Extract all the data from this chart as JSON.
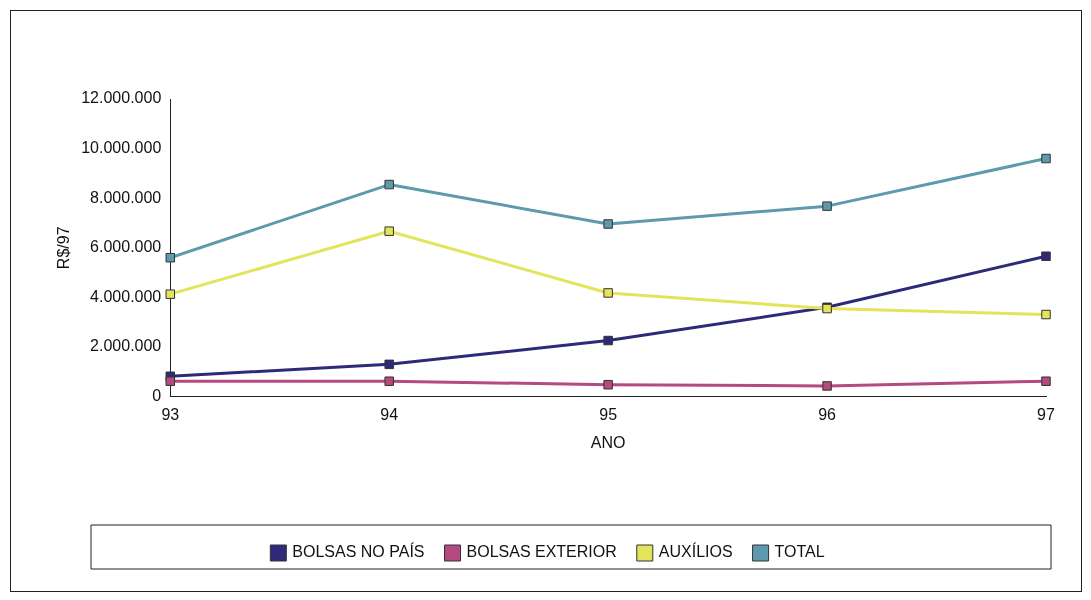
{
  "chart_data": {
    "type": "line",
    "xlabel": "ANO",
    "ylabel": "R$/97",
    "categories": [
      "93",
      "94",
      "95",
      "96",
      "97"
    ],
    "series": [
      {
        "name": "BOLSAS NO PAÍS",
        "color": "#2e2a7a",
        "values": [
          820000,
          1300000,
          2260000,
          3600000,
          5660000
        ]
      },
      {
        "name": "BOLSAS EXTERIOR",
        "color": "#b44a80",
        "values": [
          620000,
          620000,
          480000,
          430000,
          620000
        ]
      },
      {
        "name": "AUXÍLIOS",
        "color": "#e4e45a",
        "values": [
          4130000,
          6670000,
          4180000,
          3550000,
          3310000
        ]
      },
      {
        "name": "TOTAL",
        "color": "#5e9aae",
        "values": [
          5600000,
          8550000,
          6960000,
          7680000,
          9600000
        ]
      }
    ],
    "ylim": [
      0,
      12000000
    ],
    "yticks": [
      0,
      {
        "value": 2000000,
        "label": "2.000.000"
      },
      {
        "value": 4000000,
        "label": "4.000.000"
      },
      {
        "value": 6000000,
        "label": "6.000.000"
      },
      {
        "value": 8000000,
        "label": "8.000.000"
      },
      {
        "value": 10000000,
        "label": "10.000.000"
      },
      {
        "value": 12000000,
        "label": "12.000.000"
      }
    ],
    "grid": false,
    "legend": "bottom",
    "marker": "square",
    "line_style": "solid"
  }
}
